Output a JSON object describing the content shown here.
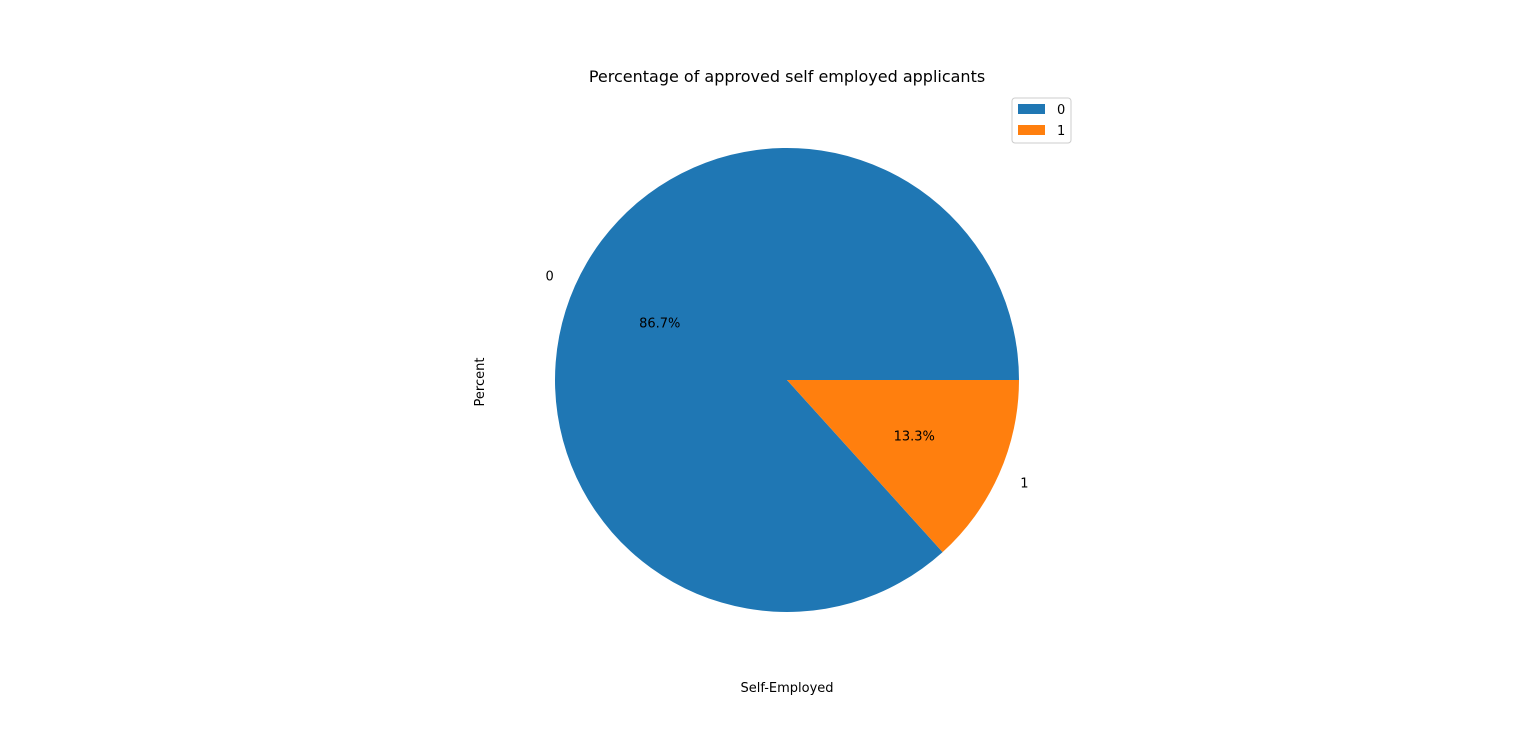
{
  "chart_data": {
    "type": "pie",
    "title": "Percentage of approved self employed applicants",
    "xlabel": "Self-Employed",
    "ylabel": "Percent",
    "slices": [
      {
        "label": "0",
        "value": 86.7,
        "pct_label": "86.7%",
        "color": "#1f77b4"
      },
      {
        "label": "1",
        "value": 13.3,
        "pct_label": "13.3%",
        "color": "#ff7f0e"
      }
    ],
    "start_angle_deg": 0,
    "direction": "counterclockwise",
    "legend": {
      "placement": "top-right",
      "entries": [
        "0",
        "1"
      ]
    }
  }
}
